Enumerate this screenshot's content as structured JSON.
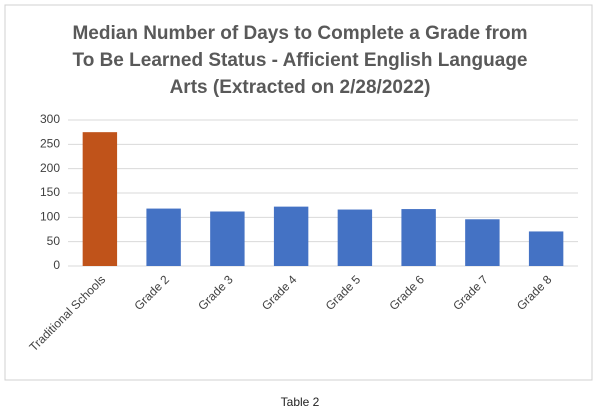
{
  "chart_data": {
    "type": "bar",
    "title": "Median Number of Days to Complete a Grade from To Be Learned Status - Afficient English Language Arts (Extracted on 2/28/2022)",
    "categories": [
      "Traditional Schools",
      "Grade 2",
      "Grade 3",
      "Grade 4",
      "Grade 5",
      "Grade 6",
      "Grade 7",
      "Grade 8"
    ],
    "values": [
      275,
      118,
      112,
      122,
      116,
      117,
      96,
      71
    ],
    "colors": [
      "#c0531a",
      "#4472c4",
      "#4472c4",
      "#4472c4",
      "#4472c4",
      "#4472c4",
      "#4472c4",
      "#4472c4"
    ],
    "ylim": [
      0,
      300
    ],
    "yticks": [
      0,
      50,
      100,
      150,
      200,
      250,
      300
    ],
    "grid": true,
    "caption": "Table 2"
  }
}
